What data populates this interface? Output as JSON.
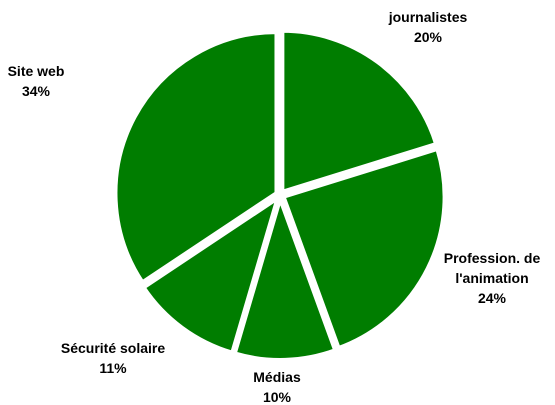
{
  "chart_data": {
    "type": "pie",
    "title": "",
    "start_angle_deg": 0,
    "direction": "clockwise",
    "legend": "none",
    "slice_color": "#007d00",
    "separator_color": "#ffffff",
    "slices": [
      {
        "label_lines": [
          "journalistes"
        ],
        "value": 20,
        "value_label": "20%"
      },
      {
        "label_lines": [
          "Profession. de",
          "l'animation"
        ],
        "value": 24,
        "value_label": "24%"
      },
      {
        "label_lines": [
          "Médias"
        ],
        "value": 10,
        "value_label": "10%"
      },
      {
        "label_lines": [
          "Sécurité solaire"
        ],
        "value": 11,
        "value_label": "11%"
      },
      {
        "label_lines": [
          "Site web"
        ],
        "value": 34,
        "value_label": "34%"
      }
    ]
  }
}
